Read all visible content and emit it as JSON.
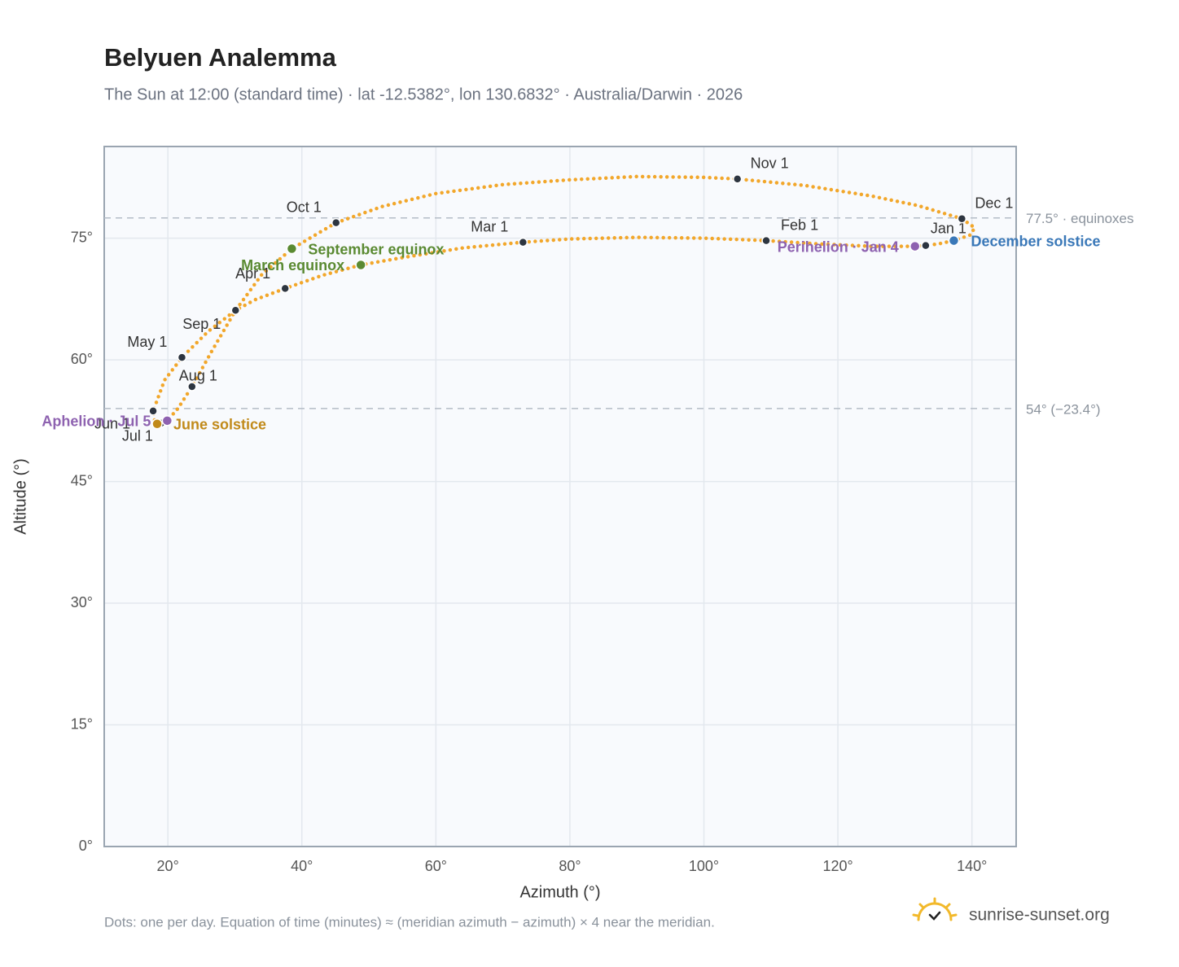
{
  "chart_data": {
    "type": "analemma",
    "title": "Belyuen Analemma",
    "subtitle": "The Sun at 12:00 (standard time) · lat -12.5382°, lon 130.6832° · Australia/Darwin · 2026",
    "x_label": "Azimuth (°)",
    "y_label": "Altitude (°)",
    "xlim": [
      10.5,
      146.6
    ],
    "ylim": [
      0,
      86.3
    ],
    "xticks": [
      {
        "value": 20,
        "label": "20°"
      },
      {
        "value": 40,
        "label": "40°"
      },
      {
        "value": 60,
        "label": "60°"
      },
      {
        "value": 80,
        "label": "80°"
      },
      {
        "value": 100,
        "label": "100°"
      },
      {
        "value": 120,
        "label": "120°"
      },
      {
        "value": 140,
        "label": "140°"
      }
    ],
    "yticks": [
      {
        "value": 0,
        "label": "0°"
      },
      {
        "value": 15,
        "label": "15°"
      },
      {
        "value": 30,
        "label": "30°"
      },
      {
        "value": 45,
        "label": "45°"
      },
      {
        "value": 60,
        "label": "60°"
      },
      {
        "value": 75,
        "label": "75°"
      }
    ],
    "grid": true,
    "path": {
      "color": "#f2a72b",
      "x": [
        133.1,
        131.5,
        125,
        117,
        109.3,
        100,
        90,
        80,
        73.0,
        64,
        55,
        48.8,
        43,
        37.5,
        33,
        30.1,
        26,
        22.1,
        19.5,
        17.8,
        18.0,
        18.4,
        19.0,
        19.9,
        21.5,
        23.6,
        26.5,
        30.1,
        34,
        38.5,
        45.1,
        52,
        60,
        70,
        80,
        90,
        100,
        105,
        115,
        125,
        132,
        138.5,
        140.4,
        139.8,
        137.3,
        135,
        133.1
      ],
      "y": [
        74.1,
        74.0,
        74.0,
        74.3,
        74.7,
        75.0,
        75.1,
        74.9,
        74.5,
        73.8,
        72.6,
        71.7,
        70.4,
        68.8,
        67.4,
        66.1,
        63.5,
        60.3,
        57.5,
        53.7,
        52.6,
        52.1,
        52.2,
        52.5,
        54.0,
        56.7,
        61,
        66.1,
        70.5,
        73.7,
        76.9,
        78.9,
        80.5,
        81.6,
        82.2,
        82.6,
        82.5,
        82.3,
        81.5,
        80.2,
        79,
        77.4,
        76.3,
        75.4,
        74.7,
        74.3,
        74.1
      ]
    },
    "months": [
      {
        "label": "Jan 1",
        "x": 133.1,
        "y": 74.1
      },
      {
        "label": "Feb 1",
        "x": 109.3,
        "y": 74.7
      },
      {
        "label": "Mar 1",
        "x": 73.0,
        "y": 74.5
      },
      {
        "label": "Apr 1",
        "x": 37.5,
        "y": 68.8
      },
      {
        "label": "May 1",
        "x": 22.1,
        "y": 60.3
      },
      {
        "label": "Jun 1",
        "x": 17.8,
        "y": 53.7
      },
      {
        "label": "Jul 1",
        "x": 19.0,
        "y": 52.2
      },
      {
        "label": "Aug 1",
        "x": 23.6,
        "y": 56.7
      },
      {
        "label": "Sep 1",
        "x": 30.1,
        "y": 66.1
      },
      {
        "label": "Oct 1",
        "x": 45.1,
        "y": 76.9
      },
      {
        "label": "Nov 1",
        "x": 105.0,
        "y": 82.3
      },
      {
        "label": "Dec 1",
        "x": 138.5,
        "y": 77.4
      }
    ],
    "month_color": "#2d3540",
    "events": [
      {
        "label": "March equinox",
        "x": 48.8,
        "y": 71.7,
        "color": "#5a8a32"
      },
      {
        "label": "September equinox",
        "x": 38.5,
        "y": 73.7,
        "color": "#5a8a32"
      },
      {
        "label": "June solstice",
        "x": 18.4,
        "y": 52.1,
        "color": "#c18a1a"
      },
      {
        "label": "December solstice",
        "x": 137.3,
        "y": 74.7,
        "color": "#3a78b8"
      },
      {
        "label": "Aphelion · Jul 5",
        "x": 19.9,
        "y": 52.5,
        "color": "#8e62b0"
      },
      {
        "label": "Perihelion · Jan 4",
        "x": 131.5,
        "y": 74.0,
        "color": "#8e62b0"
      }
    ],
    "reference_lines": [
      {
        "value": 77.5,
        "label": "77.5° · equinoxes"
      },
      {
        "value": 54,
        "label": "54° (−23.4°)"
      }
    ],
    "footnote": "Dots: one per day. Equation of time (minutes) ≈ (meridian azimuth − azimuth) × 4 near the meridian.",
    "brand": "sunrise-sunset.org"
  }
}
